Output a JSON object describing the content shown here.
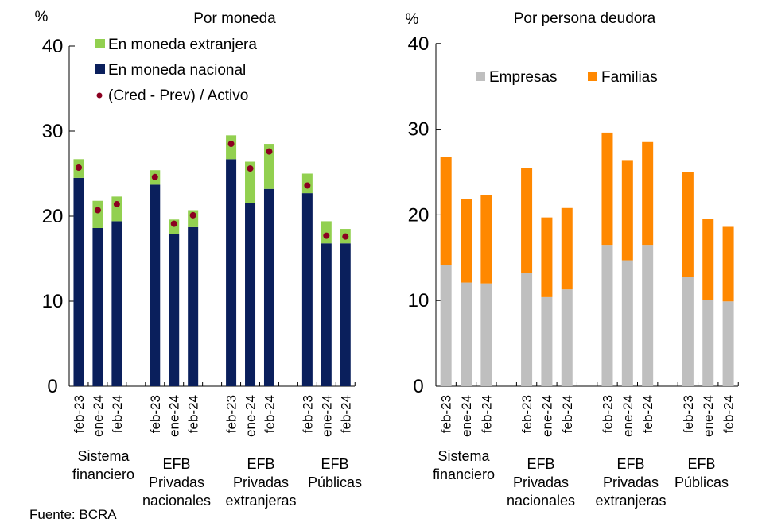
{
  "source": "Fuente: BCRA",
  "colors": {
    "foreign_currency": "#92D050",
    "domestic_currency": "#0A1F5C",
    "dot": "#8B0020",
    "companies": "#BFBFBF",
    "families": "#FF8800"
  },
  "chart_data": [
    {
      "type": "bar",
      "stacked": true,
      "title": "Por moneda",
      "ylabel": "%",
      "ylim": [
        0,
        40
      ],
      "yticks": [
        "0",
        "10",
        "20",
        "30",
        "40"
      ],
      "grid": false,
      "legend_position": "top-left",
      "groups": [
        "Sistema financiero",
        "EFB Privadas nacionales",
        "EFB Privadas extranjeras",
        "EFB Públicas"
      ],
      "group_label_lines": [
        [
          "Sistema",
          "financiero"
        ],
        [
          "EFB",
          "Privadas",
          "nacionales"
        ],
        [
          "EFB",
          "Privadas",
          "extranjeras"
        ],
        [
          "EFB",
          "Públicas"
        ]
      ],
      "categories": [
        "feb-23",
        "ene-24",
        "feb-24"
      ],
      "series": [
        {
          "name": "En moneda nacional",
          "kind": "bar",
          "values": [
            [
              24.5,
              18.6,
              19.4
            ],
            [
              23.7,
              17.9,
              18.7
            ],
            [
              26.7,
              21.5,
              23.2
            ],
            [
              22.7,
              16.8,
              16.8
            ]
          ]
        },
        {
          "name": "En moneda extranjera",
          "kind": "bar",
          "values": [
            [
              2.2,
              3.2,
              2.9
            ],
            [
              1.7,
              1.7,
              2.0
            ],
            [
              2.8,
              4.9,
              5.3
            ],
            [
              2.3,
              2.6,
              1.7
            ]
          ]
        },
        {
          "name": "(Cred - Prev) / Activo",
          "kind": "dot",
          "values": [
            [
              25.7,
              20.7,
              21.4
            ],
            [
              24.6,
              19.1,
              20.1
            ],
            [
              28.5,
              25.6,
              27.6
            ],
            [
              23.6,
              17.7,
              17.6
            ]
          ]
        }
      ],
      "legend": [
        "En moneda extranjera",
        "En moneda nacional",
        "(Cred - Prev) / Activo"
      ]
    },
    {
      "type": "bar",
      "stacked": true,
      "title": "Por persona deudora",
      "ylabel": "%",
      "ylim": [
        0,
        40
      ],
      "yticks": [
        "0",
        "10",
        "20",
        "30",
        "40"
      ],
      "grid": false,
      "legend_position": "top",
      "groups": [
        "Sistema financiero",
        "EFB Privadas nacionales",
        "EFB Privadas extranjeras",
        "EFB Públicas"
      ],
      "group_label_lines": [
        [
          "Sistema",
          "financiero"
        ],
        [
          "EFB",
          "Privadas",
          "nacionales"
        ],
        [
          "EFB",
          "Privadas",
          "extranjeras"
        ],
        [
          "EFB",
          "Públicas"
        ]
      ],
      "categories": [
        "feb-23",
        "ene-24",
        "feb-24"
      ],
      "series": [
        {
          "name": "Empresas",
          "kind": "bar",
          "values": [
            [
              14.1,
              12.1,
              12.0
            ],
            [
              13.2,
              10.4,
              11.3
            ],
            [
              16.5,
              14.7,
              16.5
            ],
            [
              12.8,
              10.1,
              9.9
            ]
          ]
        },
        {
          "name": "Familias",
          "kind": "bar",
          "values": [
            [
              12.7,
              9.7,
              10.3
            ],
            [
              12.3,
              9.3,
              9.5
            ],
            [
              13.1,
              11.7,
              12.0
            ],
            [
              12.2,
              9.4,
              8.7
            ]
          ]
        }
      ],
      "legend": [
        "Empresas",
        "Familias"
      ]
    }
  ]
}
